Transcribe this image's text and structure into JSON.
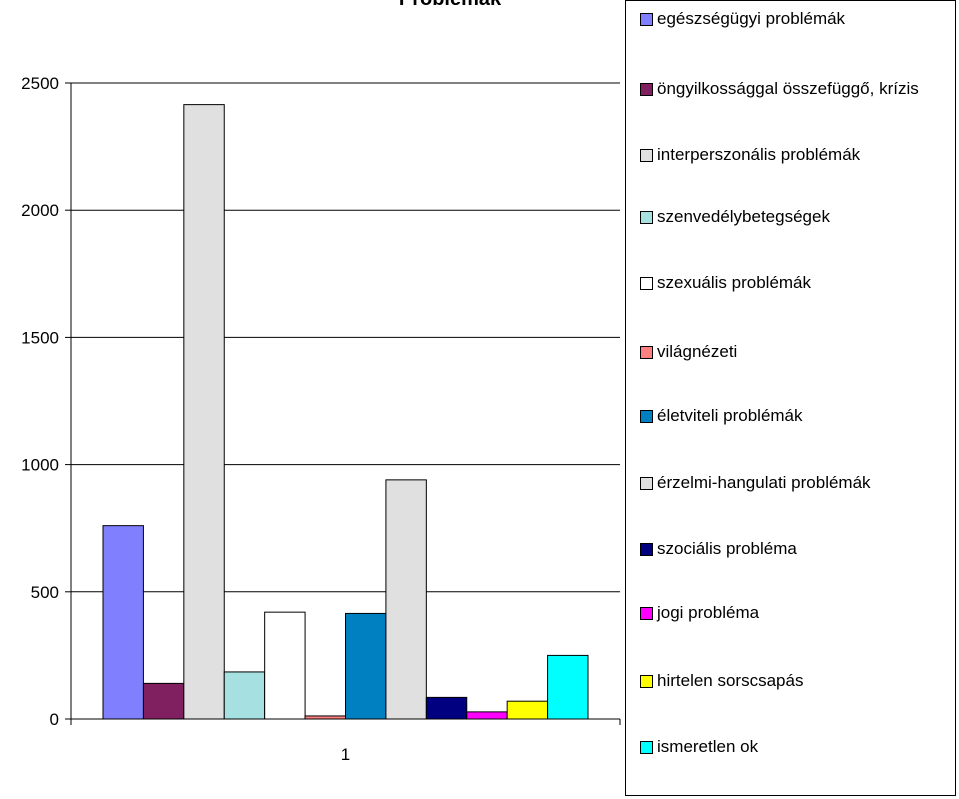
{
  "chart_data": {
    "type": "bar",
    "title": "Problémák",
    "categories": [
      "1"
    ],
    "ylim": [
      0,
      2500
    ],
    "yticks": [
      0,
      500,
      1000,
      1500,
      2000,
      2500
    ],
    "grid": true,
    "legend_position": "right",
    "series": [
      {
        "name": "egészségügyi problémák",
        "values": [
          760
        ],
        "color": "#8080ff"
      },
      {
        "name": "öngyilkossággal összefüggő, krízis",
        "values": [
          140
        ],
        "color": "#802060"
      },
      {
        "name": "interperszonális problémák",
        "values": [
          2415
        ],
        "color": "#e0e0e0"
      },
      {
        "name": "szenvedélybetegségek",
        "values": [
          185
        ],
        "color": "#a6e0e0"
      },
      {
        "name": "szexuális problémák",
        "values": [
          420
        ],
        "color": "#ffffff"
      },
      {
        "name": "világnézeti",
        "values": [
          12
        ],
        "color": "#ff8080"
      },
      {
        "name": "életviteli problémák",
        "values": [
          415
        ],
        "color": "#0080c0"
      },
      {
        "name": "érzelmi-hangulati problémák",
        "values": [
          940
        ],
        "color": "#e0e0e0"
      },
      {
        "name": "szociális probléma",
        "values": [
          85
        ],
        "color": "#000080"
      },
      {
        "name": "jogi probléma",
        "values": [
          28
        ],
        "color": "#ff00ff"
      },
      {
        "name": "hirtelen sorscsapás",
        "values": [
          70
        ],
        "color": "#ffff00"
      },
      {
        "name": "ismeretlen ok",
        "values": [
          250
        ],
        "color": "#00ffff"
      }
    ]
  }
}
